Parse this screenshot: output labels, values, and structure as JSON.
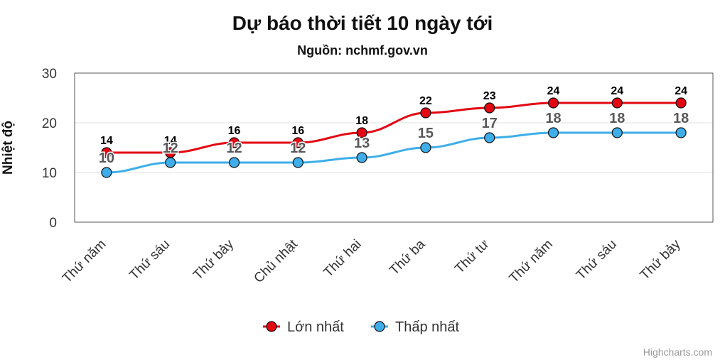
{
  "chart_data": {
    "type": "line",
    "title": "Dự báo thời tiết 10 ngày tới",
    "subtitle": "Nguồn: nchmf.gov.vn",
    "ylabel": "Nhiệt độ",
    "xlabel": "",
    "categories": [
      "Thứ năm",
      "Thứ sáu",
      "Thứ bảy",
      "Chủ nhật",
      "Thứ hai",
      "Thứ ba",
      "Thứ tư",
      "Thứ năm",
      "Thứ sáu",
      "Thứ bảy"
    ],
    "ylim": [
      0,
      30
    ],
    "yticks": [
      "0",
      "10",
      "20",
      "30"
    ],
    "grid": true,
    "legend_position": "bottom-center",
    "series": [
      {
        "name": "Lớn nhất",
        "color": "#e30613",
        "values": [
          14,
          14,
          16,
          16,
          18,
          22,
          23,
          24,
          24,
          24
        ]
      },
      {
        "name": "Thấp nhất",
        "color": "#3daee9",
        "values": [
          10,
          12,
          12,
          12,
          13,
          15,
          17,
          18,
          18,
          18
        ]
      }
    ]
  },
  "credit": "Highcharts.com"
}
